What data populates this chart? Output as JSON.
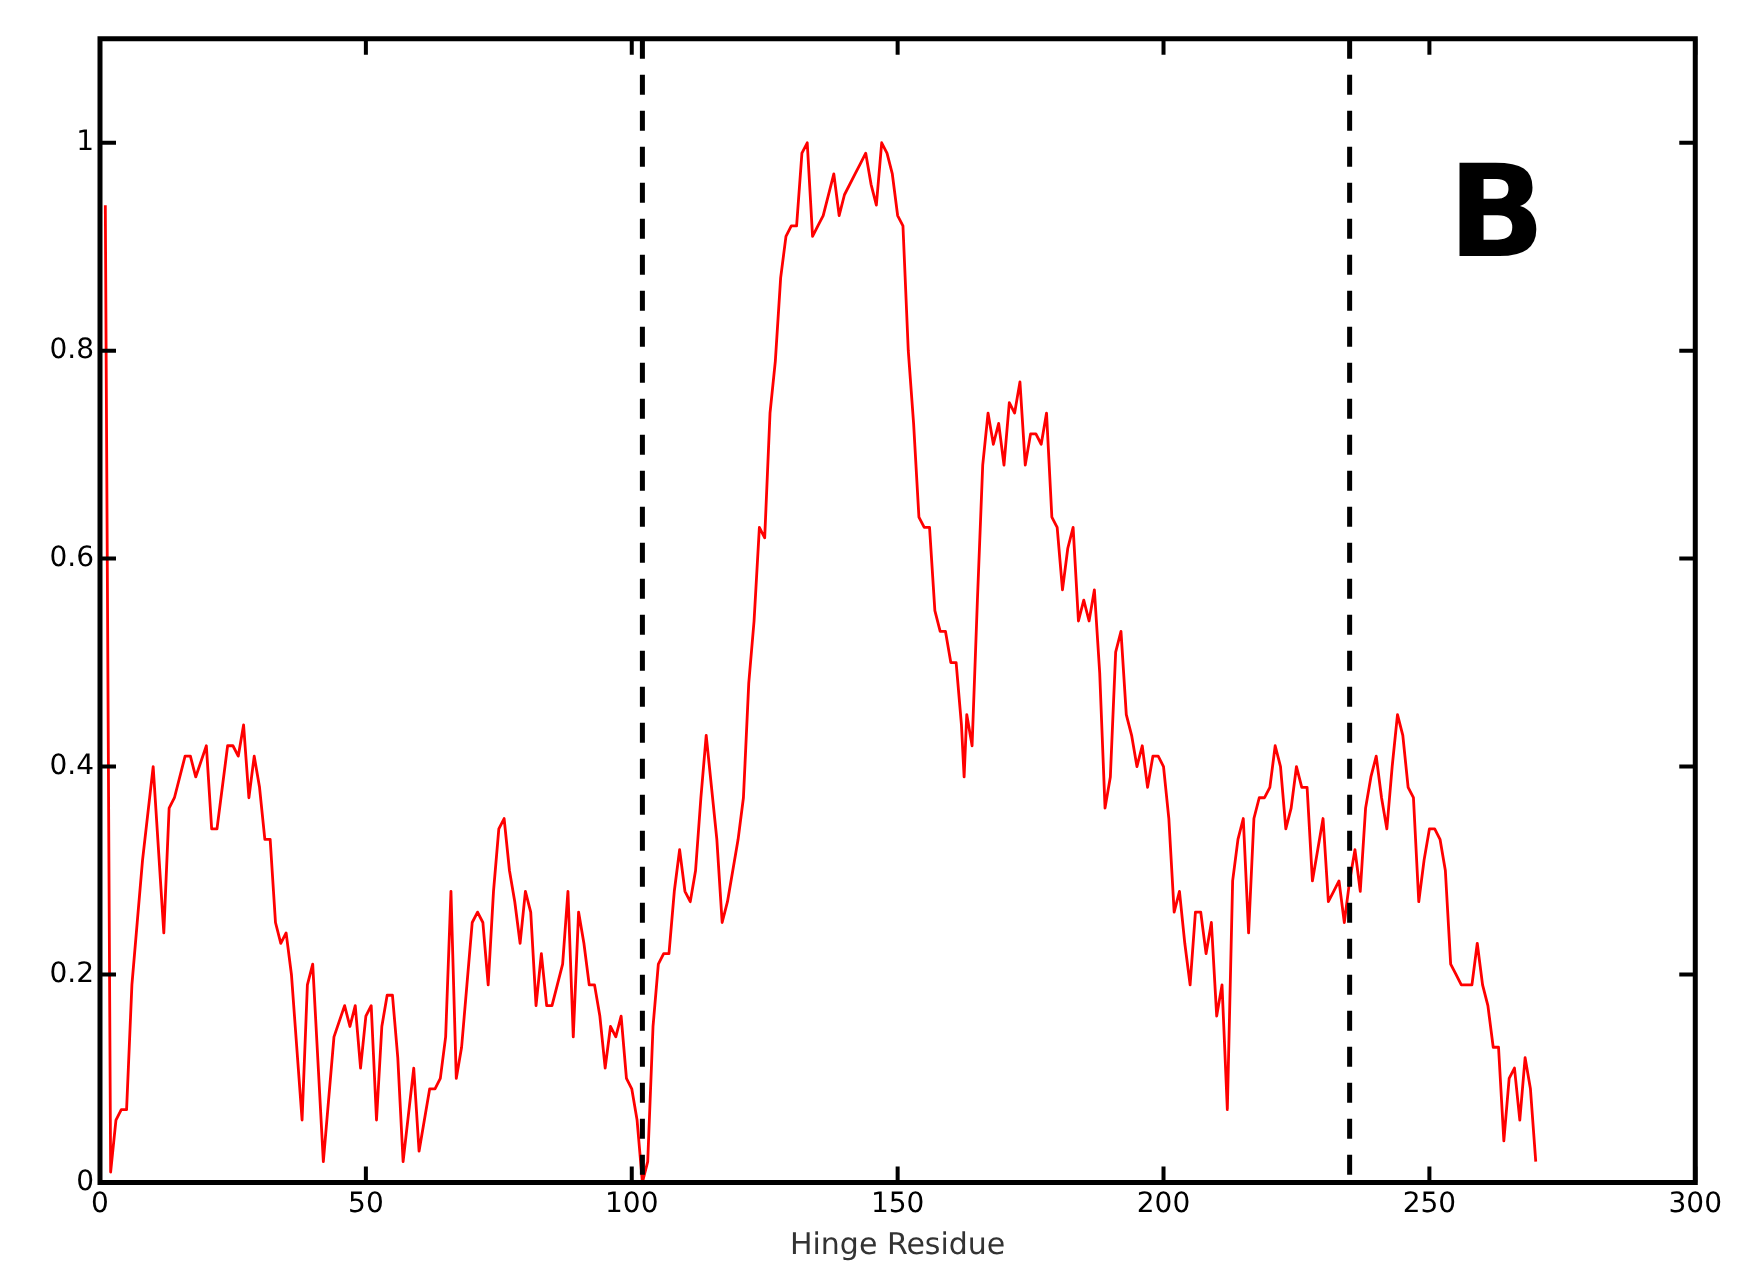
{
  "chart_data": {
    "type": "line",
    "xlabel": "Hinge Residue",
    "annotations": [
      "B"
    ],
    "xlim": [
      0,
      300
    ],
    "xticks": [
      0,
      50,
      100,
      150,
      200,
      250,
      300
    ],
    "ylim": [
      0,
      1.1
    ],
    "yticks": [
      0,
      0.2,
      0.4,
      0.6,
      0.8,
      1
    ],
    "grid": false,
    "legend": false,
    "marker": "none",
    "line_style": "solid",
    "ref_lines": [
      {
        "axis": "x",
        "value": 102,
        "color": "#000000",
        "line_style": "dashed"
      },
      {
        "axis": "x",
        "value": 235,
        "color": "#000000",
        "line_style": "dashed"
      }
    ],
    "series": [
      {
        "color": "#ff0000",
        "x": [
          1,
          2,
          3,
          4,
          5,
          6,
          7,
          8,
          10,
          12,
          13,
          14,
          16,
          17,
          18,
          20,
          21,
          22,
          24,
          25,
          26,
          27,
          28,
          29,
          30,
          31,
          32,
          33,
          34,
          35,
          36,
          38,
          39,
          40,
          42,
          44,
          46,
          47,
          48,
          49,
          50,
          51,
          52,
          53,
          54,
          55,
          56,
          57,
          59,
          60,
          62,
          63,
          64,
          65,
          66,
          67,
          68,
          69,
          70,
          71,
          72,
          73,
          74,
          75,
          76,
          77,
          78,
          79,
          80,
          81,
          82,
          83,
          84,
          85,
          86,
          87,
          88,
          89,
          90,
          91,
          92,
          93,
          94,
          95,
          96,
          97,
          98,
          99,
          100,
          101,
          102,
          103,
          104,
          105,
          106,
          107,
          108,
          109,
          110,
          111,
          112,
          113,
          114,
          115,
          116,
          117,
          118,
          120,
          121,
          122,
          123,
          124,
          125,
          126,
          127,
          128,
          129,
          130,
          131,
          132,
          133,
          134,
          135,
          136,
          138,
          139,
          140,
          142,
          143,
          144,
          145,
          146,
          147,
          148,
          149,
          150,
          151,
          152,
          153,
          154,
          155,
          156,
          157,
          158,
          159,
          160,
          161,
          162,
          162.5,
          163,
          164,
          165,
          166,
          167,
          168,
          169,
          170,
          171,
          172,
          173,
          174,
          175,
          176,
          177,
          178,
          179,
          180,
          181,
          182,
          183,
          184,
          185,
          186,
          187,
          188,
          189,
          190,
          191,
          192,
          193,
          194,
          195,
          196,
          197,
          198,
          199,
          200,
          201,
          202,
          203,
          204,
          205,
          206,
          207,
          208,
          209,
          210,
          211,
          212,
          213,
          214,
          215,
          216,
          217,
          218,
          219,
          220,
          221,
          222,
          223,
          224,
          225,
          226,
          227,
          228,
          229,
          230,
          231,
          232,
          233,
          234,
          235,
          236,
          237,
          238,
          239,
          240,
          241,
          242,
          243,
          244,
          245,
          246,
          247,
          248,
          249,
          250,
          251,
          252,
          253,
          254,
          255,
          256,
          257,
          258,
          259,
          260,
          261,
          262,
          263,
          264,
          265,
          266,
          267,
          268,
          269,
          270
        ],
        "values": [
          0.94,
          0.01,
          0.06,
          0.07,
          0.07,
          0.19,
          0.25,
          0.31,
          0.4,
          0.24,
          0.36,
          0.37,
          0.41,
          0.41,
          0.39,
          0.42,
          0.34,
          0.34,
          0.42,
          0.42,
          0.41,
          0.44,
          0.37,
          0.41,
          0.38,
          0.33,
          0.33,
          0.25,
          0.23,
          0.24,
          0.2,
          0.06,
          0.19,
          0.21,
          0.02,
          0.14,
          0.17,
          0.15,
          0.17,
          0.11,
          0.16,
          0.17,
          0.06,
          0.15,
          0.18,
          0.18,
          0.12,
          0.02,
          0.11,
          0.03,
          0.09,
          0.09,
          0.1,
          0.14,
          0.28,
          0.1,
          0.13,
          0.19,
          0.25,
          0.26,
          0.25,
          0.19,
          0.28,
          0.34,
          0.35,
          0.3,
          0.27,
          0.23,
          0.28,
          0.26,
          0.17,
          0.22,
          0.17,
          0.17,
          0.19,
          0.21,
          0.28,
          0.14,
          0.26,
          0.23,
          0.19,
          0.19,
          0.16,
          0.11,
          0.15,
          0.14,
          0.16,
          0.1,
          0.09,
          0.06,
          0,
          0.02,
          0.15,
          0.21,
          0.22,
          0.22,
          0.28,
          0.32,
          0.28,
          0.27,
          0.3,
          0.37,
          0.43,
          0.38,
          0.33,
          0.25,
          0.27,
          0.33,
          0.37,
          0.48,
          0.54,
          0.63,
          0.62,
          0.74,
          0.79,
          0.87,
          0.91,
          0.92,
          0.92,
          0.99,
          1,
          0.91,
          0.92,
          0.93,
          0.97,
          0.93,
          0.95,
          0.97,
          0.98,
          0.99,
          0.96,
          0.94,
          1,
          0.99,
          0.97,
          0.93,
          0.92,
          0.8,
          0.73,
          0.64,
          0.63,
          0.63,
          0.55,
          0.53,
          0.53,
          0.5,
          0.5,
          0.44,
          0.39,
          0.45,
          0.42,
          0.56,
          0.69,
          0.74,
          0.71,
          0.73,
          0.69,
          0.75,
          0.74,
          0.77,
          0.69,
          0.72,
          0.72,
          0.71,
          0.74,
          0.64,
          0.63,
          0.57,
          0.61,
          0.63,
          0.54,
          0.56,
          0.54,
          0.57,
          0.49,
          0.36,
          0.39,
          0.51,
          0.53,
          0.45,
          0.43,
          0.4,
          0.42,
          0.38,
          0.41,
          0.41,
          0.4,
          0.35,
          0.26,
          0.28,
          0.23,
          0.19,
          0.26,
          0.26,
          0.22,
          0.25,
          0.16,
          0.19,
          0.07,
          0.29,
          0.33,
          0.35,
          0.24,
          0.35,
          0.37,
          0.37,
          0.38,
          0.42,
          0.4,
          0.34,
          0.36,
          0.4,
          0.38,
          0.38,
          0.29,
          0.32,
          0.35,
          0.27,
          0.28,
          0.29,
          0.25,
          0.29,
          0.32,
          0.28,
          0.36,
          0.39,
          0.41,
          0.37,
          0.34,
          0.4,
          0.45,
          0.43,
          0.38,
          0.37,
          0.27,
          0.31,
          0.34,
          0.34,
          0.33,
          0.3,
          0.21,
          0.2,
          0.19,
          0.19,
          0.19,
          0.23,
          0.19,
          0.17,
          0.13,
          0.13,
          0.04,
          0.1,
          0.11,
          0.06,
          0.12,
          0.09,
          0.02
        ]
      }
    ]
  }
}
